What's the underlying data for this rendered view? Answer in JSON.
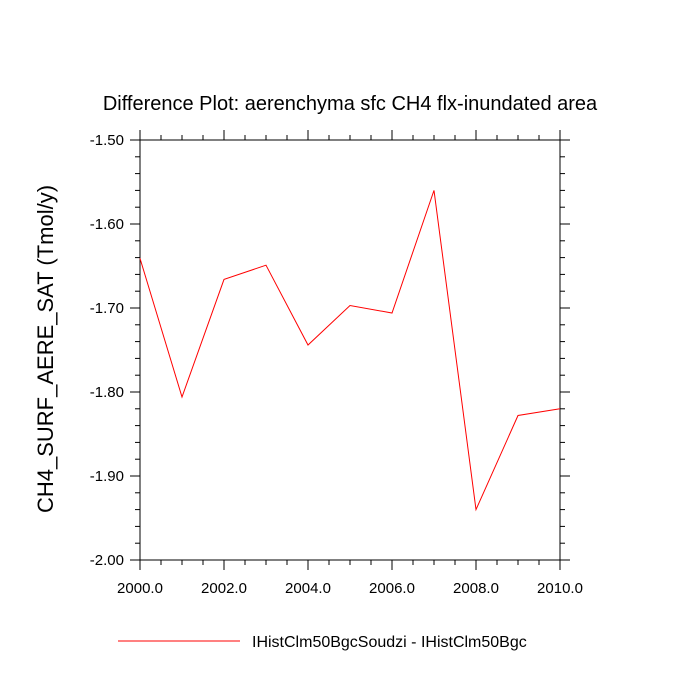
{
  "chart_data": {
    "type": "line",
    "title": "Difference Plot: aerenchyma sfc CH4 flx-inundated area",
    "xlabel": "",
    "ylabel": "CH4_SURF_AERE_SAT  (Tmol/y)",
    "xlim": [
      2000,
      2010
    ],
    "ylim": [
      -2.0,
      -1.5
    ],
    "x_ticks": [
      "2000.0",
      "2002.0",
      "2004.0",
      "2006.0",
      "2008.0",
      "2010.0"
    ],
    "x_tick_values": [
      2000,
      2002,
      2004,
      2006,
      2008,
      2010
    ],
    "y_ticks": [
      "-1.50",
      "-1.60",
      "-1.70",
      "-1.80",
      "-1.90",
      "-2.00"
    ],
    "y_tick_values": [
      -1.5,
      -1.6,
      -1.7,
      -1.8,
      -1.9,
      -2.0
    ],
    "grid": false,
    "legend_position": "bottom",
    "series": [
      {
        "name": "IHistClm50BgcSoudzi - IHistClm50Bgc",
        "color": "#ff0000",
        "x": [
          2000,
          2001,
          2002,
          2003,
          2004,
          2005,
          2006,
          2007,
          2008,
          2009,
          2010
        ],
        "y": [
          -1.641,
          -1.806,
          -1.666,
          -1.649,
          -1.744,
          -1.697,
          -1.706,
          -1.56,
          -1.94,
          -1.828,
          -1.82
        ]
      }
    ]
  }
}
